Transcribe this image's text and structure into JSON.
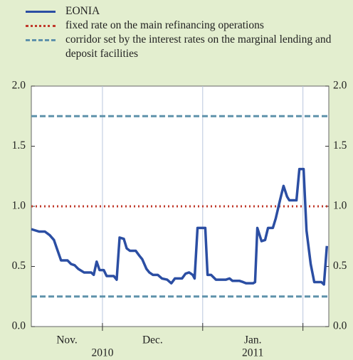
{
  "chart_data": {
    "type": "line",
    "x": [
      0,
      2.4,
      4.2,
      5.7,
      7.0,
      7.9,
      9.2,
      11.2,
      12.3,
      13.4,
      14.5,
      16.3,
      18.5,
      19.3,
      20.2,
      21.1,
      22.4,
      23.3,
      25.5,
      26.4,
      27.3,
      28.6,
      29.5,
      30.5,
      32.3,
      33.4,
      34.3,
      35.6,
      36.5,
      37.6,
      39.1,
      40.4,
      42.0,
      43.3,
      44.4,
      46.6,
      47.7,
      48.8,
      49.9,
      50.5,
      51.4,
      53.8,
      54.5,
      55.6,
      57.1,
      60.2,
      61.3,
      62.2,
      64.4,
      65.5,
      66.4,
      68.6,
      69.2,
      69.9,
      71.2,
      72.3,
      73.2,
      74.7,
      75.6,
      76.9,
      78.0,
      79.1,
      79.8,
      82.0,
      82.9,
      84.2,
      85.1,
      86.4,
      87.5,
      89.7,
      90.5,
      91.4
    ],
    "series": [
      {
        "name": "EONIA",
        "color": "#2b4ea3",
        "values": [
          0.81,
          0.79,
          0.79,
          0.76,
          0.72,
          0.65,
          0.55,
          0.55,
          0.52,
          0.51,
          0.48,
          0.45,
          0.45,
          0.43,
          0.54,
          0.47,
          0.47,
          0.42,
          0.42,
          0.39,
          0.74,
          0.73,
          0.65,
          0.63,
          0.63,
          0.59,
          0.56,
          0.48,
          0.45,
          0.43,
          0.43,
          0.4,
          0.39,
          0.36,
          0.4,
          0.4,
          0.44,
          0.45,
          0.43,
          0.4,
          0.82,
          0.82,
          0.43,
          0.43,
          0.39,
          0.39,
          0.4,
          0.38,
          0.38,
          0.37,
          0.36,
          0.36,
          0.37,
          0.82,
          0.71,
          0.72,
          0.82,
          0.82,
          0.9,
          1.05,
          1.17,
          1.08,
          1.05,
          1.05,
          1.31,
          1.31,
          0.8,
          0.52,
          0.37,
          0.37,
          0.35,
          0.67
        ]
      }
    ],
    "reference_lines": [
      {
        "name": "fixed rate on the main refinancing operations",
        "color": "#c0392b",
        "style": "dotted",
        "values": [
          1.0
        ]
      },
      {
        "name": "corridor set by the interest rates on the marginal lending and deposit facilities",
        "color": "#5f92ab",
        "style": "dashed",
        "values": [
          0.25,
          1.75
        ]
      }
    ],
    "xlim": [
      0,
      92
    ],
    "xticks": [
      22,
      53,
      84
    ],
    "month_labels": [
      "Nov.",
      "Dec.",
      "Jan."
    ],
    "year_labels": [
      "2010",
      "2011"
    ],
    "ylim": [
      0,
      2.0
    ],
    "yticks": [
      {
        "value": 0,
        "label": "0.0"
      },
      0.5,
      {
        "value": 1,
        "label": "1.0"
      },
      1.5,
      {
        "value": 2,
        "label": "2.0"
      }
    ],
    "grid": true
  }
}
